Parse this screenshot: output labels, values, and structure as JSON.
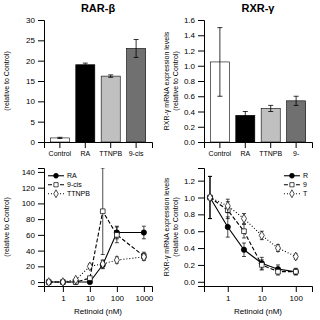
{
  "chart_data": [
    {
      "type": "bar",
      "title": "RAR-β",
      "categories": [
        "Control",
        "RA",
        "TTNPB",
        "9-cis"
      ],
      "values": [
        1.0,
        19.0,
        16.2,
        23.0
      ],
      "errors": [
        0.15,
        0.4,
        0.3,
        2.2
      ],
      "colors": [
        "white",
        "black",
        "#c0c0c0",
        "#707070"
      ],
      "ylabel": "(relative to Control)",
      "ylim": [
        0,
        30
      ],
      "yticks": [
        0,
        5,
        10,
        15,
        20,
        25,
        30
      ],
      "grid": false
    },
    {
      "type": "bar",
      "title": "RXR-γ",
      "categories": [
        "Control",
        "RA",
        "TTNPB",
        "9-"
      ],
      "values": [
        1.05,
        0.35,
        0.44,
        0.54
      ],
      "errors": [
        0.45,
        0.05,
        0.04,
        0.06
      ],
      "colors": [
        "white",
        "black",
        "#c0c0c0",
        "#707070"
      ],
      "ylabel": "RXR-γ mRNA expression levels\n(relative to Control)",
      "ylim": [
        0,
        1.6
      ],
      "yticks": [
        {
          "value": 0,
          "label": "0.0"
        },
        0.2,
        0.4,
        0.6,
        0.8,
        {
          "value": 1.0,
          "label": "1.0"
        },
        1.2,
        1.4,
        1.6
      ],
      "grid": false
    },
    {
      "type": "line",
      "xlabel": "Retinoid (nM)",
      "ylabel": "(relative to Control)",
      "log": "x",
      "x": [
        0.3,
        1,
        3,
        10,
        30,
        100,
        1000
      ],
      "xlim": [
        0.2,
        2000
      ],
      "xticks": [
        1,
        10,
        100,
        1000
      ],
      "ylim": [
        -5,
        145
      ],
      "yticks": [
        0,
        20,
        40,
        60,
        80,
        100,
        120,
        140
      ],
      "legend": "upper left",
      "grid": false,
      "series": [
        {
          "name": "RA",
          "color": "black",
          "marker": "circle",
          "line_style": "solid",
          "values": [
            0,
            0,
            0,
            0,
            22,
            63,
            63
          ],
          "errors": [
            0,
            0,
            0,
            0,
            5,
            8,
            8
          ]
        },
        {
          "name": "9-cis",
          "color": "black",
          "marker": "square-open",
          "line_style": "dashed",
          "values": [
            0,
            0,
            0,
            5,
            90,
            60,
            33
          ],
          "errors": [
            0,
            0,
            0,
            2,
            55,
            10,
            5
          ]
        },
        {
          "name": "TTNPB",
          "color": "black",
          "marker": "diamond-open",
          "line_style": "dotted",
          "values": [
            0,
            0,
            3,
            20,
            23,
            28,
            32
          ],
          "errors": [
            0,
            0,
            1,
            3,
            5,
            4,
            4
          ]
        }
      ]
    },
    {
      "type": "line",
      "xlabel": "Retinoid (nM)",
      "ylabel": "RXR-γ mRNA expression levels\n(relative to Control)",
      "log": "x",
      "x": [
        0.3,
        1,
        3,
        10,
        30,
        100
      ],
      "xlim": [
        0.2,
        300
      ],
      "xticks": [
        1,
        10,
        100
      ],
      "ylim": [
        -0.05,
        1.35
      ],
      "yticks": [
        {
          "value": 0,
          "label": "0.0"
        },
        0.2,
        0.4,
        0.6,
        0.8,
        {
          "value": 1.0,
          "label": "1.0"
        },
        1.2
      ],
      "legend": "upper right",
      "grid": false,
      "series": [
        {
          "name": "R",
          "color": "black",
          "marker": "circle",
          "line_style": "solid",
          "values": [
            1.0,
            0.65,
            0.38,
            0.22,
            0.15,
            0.12
          ],
          "errors": [
            0.25,
            0.12,
            0.08,
            0.07,
            0.05,
            0.04
          ]
        },
        {
          "name": "9",
          "color": "black",
          "marker": "square-open",
          "line_style": "dashed",
          "values": [
            1.0,
            0.85,
            0.6,
            0.2,
            0.12,
            0.12
          ],
          "errors": [
            0.25,
            0.1,
            0.08,
            0.06,
            0.04,
            0.03
          ]
        },
        {
          "name": "T",
          "color": "black",
          "marker": "diamond-open",
          "line_style": "dotted",
          "values": [
            1.0,
            0.9,
            0.75,
            0.55,
            0.4,
            0.3
          ],
          "errors": [
            0.25,
            0.08,
            0.06,
            0.05,
            0.04,
            0.03
          ]
        }
      ]
    }
  ]
}
